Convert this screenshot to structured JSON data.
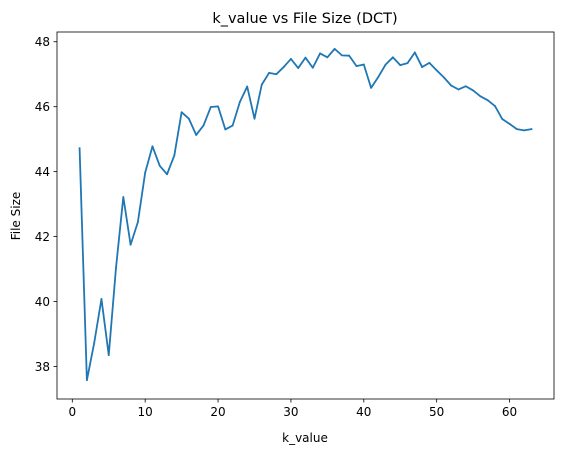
{
  "chart_data": {
    "type": "line",
    "title": "k_value vs File Size (DCT)",
    "xlabel": "k_value",
    "ylabel": "File Size",
    "xlim": [
      -2.1,
      66.1
    ],
    "ylim": [
      37.0,
      48.3
    ],
    "xticks": [
      0,
      10,
      20,
      30,
      40,
      50,
      60
    ],
    "yticks": [
      38,
      40,
      42,
      44,
      46,
      48
    ],
    "xtick_labels": [
      "0",
      "10",
      "20",
      "30",
      "40",
      "50",
      "60"
    ],
    "ytick_labels": [
      "38",
      "40",
      "42",
      "44",
      "46",
      "48"
    ],
    "grid": false,
    "legend": "none",
    "series": [
      {
        "color": "#1f77b4",
        "x": [
          1,
          2,
          3,
          4,
          5,
          6,
          7,
          8,
          9,
          10,
          11,
          12,
          13,
          14,
          15,
          16,
          17,
          18,
          19,
          20,
          21,
          22,
          23,
          24,
          25,
          26,
          27,
          28,
          29,
          30,
          31,
          32,
          33,
          34,
          35,
          36,
          37,
          38,
          39,
          40,
          41,
          42,
          43,
          44,
          45,
          46,
          47,
          48,
          49,
          50,
          51,
          52,
          53,
          54,
          55,
          56,
          57,
          58,
          59,
          60,
          61,
          62,
          63
        ],
        "y": [
          44.72,
          37.58,
          38.72,
          40.08,
          38.35,
          41.05,
          43.22,
          41.75,
          42.45,
          43.97,
          44.78,
          44.18,
          43.92,
          44.5,
          45.83,
          45.63,
          45.13,
          45.42,
          45.99,
          46.01,
          45.3,
          45.42,
          46.15,
          46.62,
          45.63,
          46.68,
          47.04,
          47.0,
          47.22,
          47.47,
          47.19,
          47.51,
          47.2,
          47.64,
          47.52,
          47.78,
          47.58,
          47.57,
          47.25,
          47.3,
          46.58,
          46.92,
          47.3,
          47.52,
          47.28,
          47.34,
          47.67,
          47.22,
          47.35,
          47.12,
          46.9,
          46.65,
          46.53,
          46.63,
          46.5,
          46.32,
          46.2,
          46.02,
          45.62,
          45.47,
          45.31,
          45.27,
          45.31
        ]
      }
    ]
  }
}
